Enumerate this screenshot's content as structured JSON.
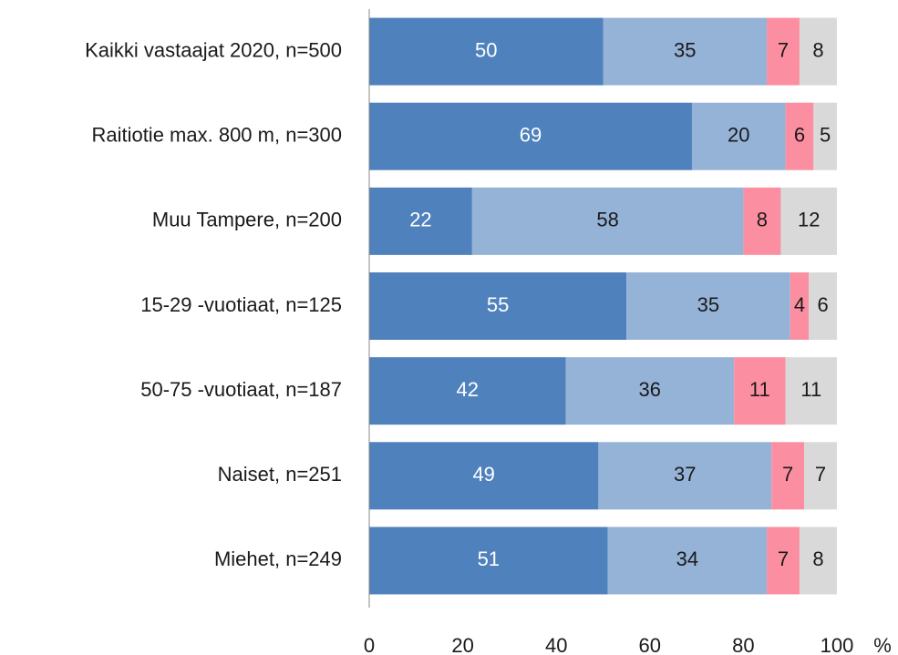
{
  "chart_data": {
    "type": "bar",
    "orientation": "horizontal",
    "stacked": true,
    "categories": [
      "Kaikki vastaajat 2020, n=500",
      "Raitiotie max. 800 m, n=300",
      "Muu Tampere, n=200",
      "15-29 -vuotiaat, n=125",
      "50-75 -vuotiaat, n=187",
      "Naiset, n=251",
      "Miehet, n=249"
    ],
    "series": [
      {
        "color": "#4f81bd",
        "label_color": "#ffffff",
        "values": [
          50,
          69,
          22,
          55,
          42,
          49,
          51
        ]
      },
      {
        "color": "#95b3d7",
        "label_color": "#1a1a1a",
        "values": [
          35,
          20,
          58,
          35,
          36,
          37,
          34
        ]
      },
      {
        "color": "#fb8fa1",
        "label_color": "#1a1a1a",
        "values": [
          7,
          6,
          8,
          4,
          11,
          7,
          7
        ]
      },
      {
        "color": "#d9d9d9",
        "label_color": "#1a1a1a",
        "values": [
          8,
          5,
          12,
          6,
          11,
          7,
          8
        ]
      }
    ],
    "xlim": [
      0,
      100
    ],
    "xticks": [
      0,
      20,
      40,
      60,
      80,
      100
    ],
    "xlabel": "%"
  }
}
